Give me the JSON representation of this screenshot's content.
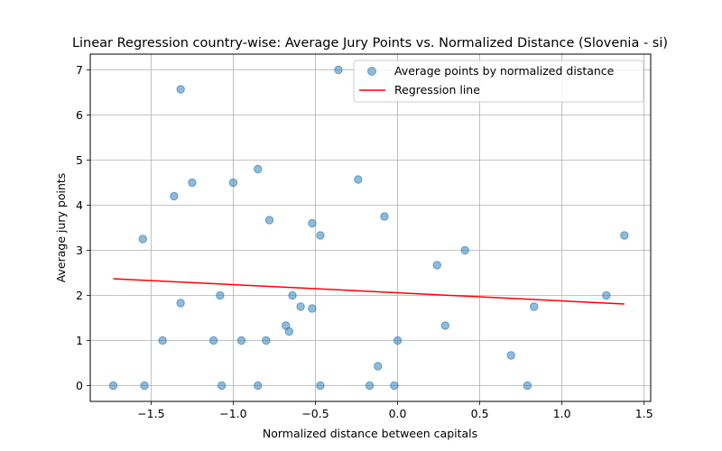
{
  "chart_data": {
    "type": "scatter",
    "title": "Linear Regression country-wise: Average Jury Points vs. Normalized Distance (Slovenia - si)",
    "xlabel": "Normalized distance between capitals",
    "ylabel": "Average jury points",
    "xlim": [
      -1.87,
      1.54
    ],
    "ylim": [
      -0.35,
      7.35
    ],
    "x_ticks": [
      -1.5,
      -1.0,
      -0.5,
      0.0,
      0.5,
      1.0,
      1.5
    ],
    "x_tick_labels": [
      "−1.5",
      "−1.0",
      "−0.5",
      "0.0",
      "0.5",
      "1.0",
      "1.5"
    ],
    "y_ticks": [
      0,
      1,
      2,
      3,
      4,
      5,
      6,
      7
    ],
    "y_tick_labels": [
      "0",
      "1",
      "2",
      "3",
      "4",
      "5",
      "6",
      "7"
    ],
    "grid": true,
    "legend_position": "top-right",
    "series": [
      {
        "name": "Average points by normalized distance",
        "kind": "scatter",
        "color": "#1f77b4",
        "points": [
          [
            -1.73,
            0
          ],
          [
            -1.55,
            3.25
          ],
          [
            -1.54,
            0
          ],
          [
            -1.43,
            1.0
          ],
          [
            -1.36,
            4.2
          ],
          [
            -1.32,
            6.57
          ],
          [
            -1.32,
            1.83
          ],
          [
            -1.25,
            4.5
          ],
          [
            -1.12,
            1.0
          ],
          [
            -1.08,
            2.0
          ],
          [
            -1.07,
            0
          ],
          [
            -1.0,
            4.5
          ],
          [
            -0.95,
            1.0
          ],
          [
            -0.85,
            4.8
          ],
          [
            -0.85,
            0
          ],
          [
            -0.8,
            1.0
          ],
          [
            -0.78,
            3.67
          ],
          [
            -0.68,
            1.33
          ],
          [
            -0.66,
            1.2
          ],
          [
            -0.64,
            2.0
          ],
          [
            -0.59,
            1.75
          ],
          [
            -0.52,
            3.6
          ],
          [
            -0.52,
            1.71
          ],
          [
            -0.47,
            3.33
          ],
          [
            -0.47,
            0
          ],
          [
            -0.36,
            7.0
          ],
          [
            -0.24,
            4.57
          ],
          [
            -0.17,
            0
          ],
          [
            -0.12,
            0.43
          ],
          [
            -0.08,
            3.75
          ],
          [
            -0.02,
            0
          ],
          [
            0.0,
            1.0
          ],
          [
            0.24,
            2.67
          ],
          [
            0.29,
            1.33
          ],
          [
            0.41,
            3.0
          ],
          [
            0.69,
            0.67
          ],
          [
            0.79,
            0
          ],
          [
            0.83,
            1.75
          ],
          [
            1.27,
            2.0
          ],
          [
            1.38,
            3.33
          ]
        ]
      },
      {
        "name": "Regression line",
        "kind": "line",
        "color": "#ff0000",
        "points": [
          [
            -1.73,
            2.37
          ],
          [
            1.38,
            1.81
          ]
        ]
      }
    ]
  }
}
